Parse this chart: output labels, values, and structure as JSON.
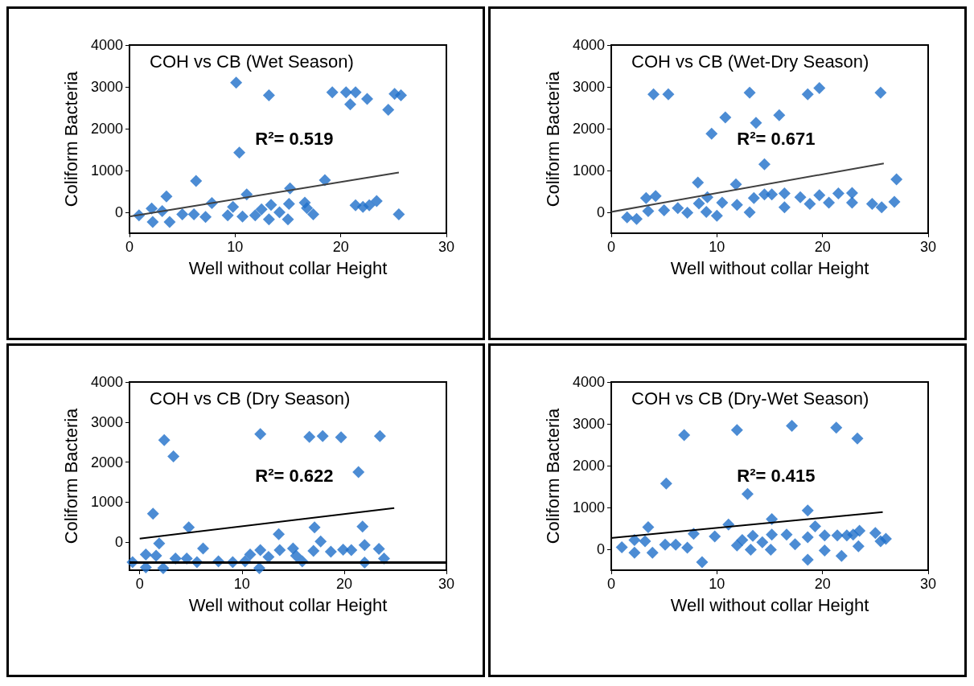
{
  "chart_data": [
    {
      "type": "scatter",
      "title": "COH vs CB (Wet Season)",
      "xlabel": "Well without collar Height",
      "ylabel": "Coliform Bacteria",
      "xlim": [
        0,
        30
      ],
      "xticks": [
        0,
        10,
        20,
        30
      ],
      "ylim": [
        -500,
        4000
      ],
      "yticks": [
        0,
        1000,
        2000,
        3000,
        4000
      ],
      "grid": false,
      "annotations": [
        "R²= 0.519"
      ],
      "series": [
        {
          "type": "scatter",
          "marker": "diamond",
          "color": "#1f6fc9",
          "x": [
            10.1,
            13.2,
            19.2,
            20.5,
            21.4,
            20.9,
            22.5,
            24.5,
            25.1,
            25.7,
            10.4,
            6.3,
            18.5,
            25.5,
            21.4,
            22.1,
            22.7,
            23.4,
            0.9,
            2.1,
            2.2,
            3.5,
            3.1,
            3.8,
            5.0,
            6.1,
            7.2,
            7.8,
            9.3,
            9.8,
            10.7,
            11.1,
            11.9,
            12.5,
            13.2,
            13.4,
            14.2,
            15.0,
            15.2,
            15.1,
            16.6,
            16.8,
            17.4
          ],
          "values": [
            3100,
            2800,
            2870,
            2870,
            2870,
            2580,
            2710,
            2450,
            2830,
            2800,
            1430,
            750,
            770,
            -50,
            170,
            130,
            170,
            270,
            -70,
            90,
            -230,
            380,
            30,
            -230,
            -50,
            -50,
            -110,
            220,
            -70,
            130,
            -100,
            430,
            -70,
            70,
            -170,
            180,
            0,
            -170,
            570,
            200,
            230,
            100,
            -50
          ]
        },
        {
          "type": "line",
          "marker": "none",
          "color": "#404040",
          "x": [
            0,
            25.5
          ],
          "values": [
            -100,
            950
          ]
        }
      ]
    },
    {
      "type": "scatter",
      "title": "COH vs CB (Wet-Dry Season)",
      "xlabel": "Well without collar Height",
      "ylabel": "Coliform Bacteria",
      "xlim": [
        0,
        30
      ],
      "xticks": [
        0,
        10,
        20,
        30
      ],
      "ylim": [
        -500,
        4000
      ],
      "yticks": [
        0,
        1000,
        2000,
        3000,
        4000
      ],
      "grid": false,
      "annotations": [
        "R²= 0.671"
      ],
      "series": [
        {
          "type": "scatter",
          "marker": "diamond",
          "color": "#1f6fc9",
          "x": [
            4.0,
            5.4,
            13.1,
            18.6,
            19.7,
            25.5,
            10.8,
            13.7,
            15.9,
            9.5,
            14.5,
            8.2,
            11.8,
            27.0,
            1.5,
            2.4,
            3.3,
            3.5,
            4.2,
            5.0,
            6.3,
            7.2,
            8.3,
            9.1,
            9.0,
            10.0,
            10.5,
            11.9,
            13.1,
            13.5,
            14.5,
            15.2,
            16.4,
            16.4,
            17.9,
            18.8,
            19.7,
            20.6,
            21.5,
            22.8,
            22.8,
            24.7,
            25.6,
            26.8
          ],
          "values": [
            2820,
            2820,
            2860,
            2820,
            2970,
            2860,
            2270,
            2140,
            2320,
            1880,
            1150,
            710,
            670,
            790,
            -120,
            -160,
            340,
            30,
            390,
            50,
            100,
            -10,
            210,
            360,
            10,
            -80,
            230,
            180,
            0,
            340,
            430,
            430,
            450,
            120,
            360,
            200,
            410,
            230,
            450,
            460,
            230,
            200,
            120,
            250
          ]
        },
        {
          "type": "line",
          "marker": "none",
          "color": "#404040",
          "x": [
            0,
            25.8
          ],
          "values": [
            10,
            1170
          ]
        }
      ]
    },
    {
      "type": "scatter",
      "title": "COH vs CB (Dry Season)",
      "xlabel": "Well without collar Height",
      "ylabel": "Coliform Bacteria",
      "xlim": [
        -1,
        30
      ],
      "xticks": [
        0,
        10,
        20,
        30
      ],
      "ylim": [
        -700,
        4000
      ],
      "yticks": [
        0,
        1000,
        2000,
        3000,
        4000
      ],
      "grid": false,
      "annotations": [
        "R²= 0.622"
      ],
      "ref_lines": [
        {
          "axis": "y",
          "value": -500,
          "color": "#000000"
        }
      ],
      "series": [
        {
          "type": "scatter",
          "marker": "diamond",
          "color": "#1f6fc9",
          "x": [
            -0.7,
            0.6,
            0.6,
            1.3,
            1.9,
            1.6,
            2.3,
            2.4,
            3.3,
            3.5,
            4.6,
            4.8,
            5.6,
            6.2,
            7.7,
            9.1,
            10.3,
            10.8,
            11.7,
            11.8,
            11.8,
            12.6,
            13.6,
            13.7,
            15.0,
            15.3,
            15.9,
            16.6,
            17.9,
            19.7,
            17.1,
            17.0,
            17.7,
            18.7,
            19.9,
            20.7,
            21.4,
            21.8,
            22.0,
            22.0,
            23.5,
            23.4,
            23.9
          ],
          "values": [
            -500,
            -310,
            -630,
            710,
            -30,
            -340,
            -650,
            2550,
            2140,
            -410,
            -410,
            370,
            -500,
            -160,
            -480,
            -500,
            -480,
            -310,
            -650,
            -200,
            2700,
            -370,
            200,
            -200,
            -160,
            -340,
            -480,
            2630,
            2650,
            2620,
            370,
            -220,
            20,
            -240,
            -190,
            -200,
            1750,
            390,
            -70,
            -510,
            2650,
            -170,
            -410
          ]
        },
        {
          "type": "line",
          "marker": "none",
          "color": "#000000",
          "x": [
            0,
            24.9
          ],
          "values": [
            90,
            850
          ]
        }
      ]
    },
    {
      "type": "scatter",
      "title": "COH vs CB (Dry-Wet Season)",
      "xlabel": "Well without collar Height",
      "ylabel": "Coliform Bacteria",
      "xlim": [
        0,
        30
      ],
      "xticks": [
        0,
        10,
        20,
        30
      ],
      "ylim": [
        -500,
        4000
      ],
      "yticks": [
        0,
        1000,
        2000,
        3000,
        4000
      ],
      "grid": false,
      "annotations": [
        "R²= 0.415"
      ],
      "series": [
        {
          "type": "scatter",
          "marker": "diamond",
          "color": "#1f6fc9",
          "x": [
            6.9,
            11.9,
            17.1,
            21.3,
            23.3,
            5.2,
            12.9,
            18.6,
            1.0,
            2.2,
            2.2,
            3.5,
            3.2,
            3.9,
            5.1,
            6.1,
            7.2,
            7.8,
            8.6,
            9.8,
            11.1,
            11.9,
            12.4,
            13.2,
            13.4,
            14.3,
            15.1,
            15.2,
            15.2,
            16.6,
            17.4,
            18.6,
            18.6,
            19.3,
            20.2,
            20.2,
            21.4,
            21.8,
            22.3,
            22.9,
            23.5,
            23.4,
            25.0,
            25.5,
            26.0
          ],
          "values": [
            2730,
            2850,
            2950,
            2910,
            2650,
            1570,
            1320,
            930,
            50,
            220,
            -80,
            530,
            190,
            -80,
            110,
            110,
            40,
            370,
            -310,
            310,
            590,
            90,
            220,
            -10,
            320,
            170,
            -10,
            720,
            350,
            350,
            120,
            290,
            -250,
            550,
            330,
            -30,
            330,
            -160,
            330,
            350,
            440,
            70,
            390,
            190,
            250
          ]
        },
        {
          "type": "line",
          "marker": "none",
          "color": "#000000",
          "x": [
            0,
            25.7
          ],
          "values": [
            270,
            890
          ]
        }
      ]
    }
  ]
}
